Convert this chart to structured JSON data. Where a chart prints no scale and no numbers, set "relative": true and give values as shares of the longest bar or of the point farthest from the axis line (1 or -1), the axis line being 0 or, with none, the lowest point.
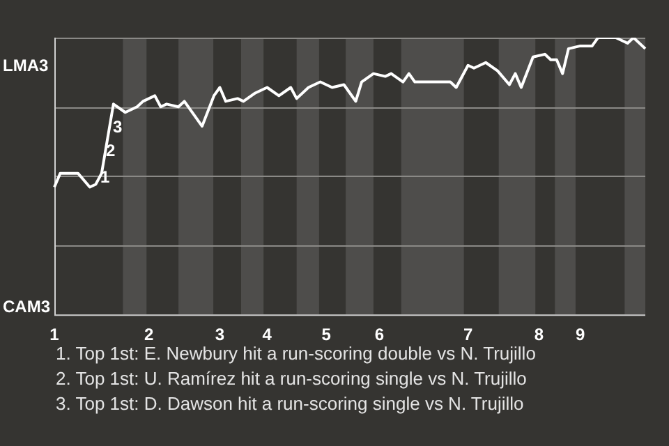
{
  "chart_data": {
    "type": "line",
    "relative": true,
    "categories": [
      "1",
      null,
      null,
      null,
      null,
      null,
      null,
      null,
      null,
      null,
      null,
      null,
      null,
      null,
      null,
      null,
      "2",
      null,
      null,
      null,
      null,
      null,
      null,
      null,
      null,
      null,
      null,
      null,
      "3",
      null,
      null,
      null,
      null,
      null,
      null,
      null,
      "4",
      null,
      null,
      null,
      null,
      null,
      null,
      null,
      null,
      null,
      "5",
      null,
      null,
      null,
      null,
      null,
      null,
      null,
      null,
      "6",
      null,
      null,
      null,
      null,
      null,
      null,
      null,
      null,
      null,
      null,
      null,
      null,
      null,
      null,
      "7",
      null,
      null,
      null,
      null,
      null,
      null,
      null,
      null,
      null,
      null,
      null,
      "8",
      null,
      null,
      null,
      null,
      null,
      null,
      "9",
      null,
      null,
      null,
      null,
      null,
      null,
      null,
      null,
      null,
      null,
      null
    ],
    "series": [
      {
        "color": "#ffffff",
        "values": [
          0.46,
          0.51,
          null,
          null,
          0.51,
          null,
          0.46,
          0.47,
          0.51,
          null,
          0.76,
          null,
          0.73,
          null,
          0.75,
          0.77,
          null,
          0.79,
          0.75,
          0.76,
          null,
          0.75,
          0.77,
          null,
          null,
          0.68,
          null,
          0.79,
          0.82,
          0.77,
          null,
          0.78,
          0.77,
          null,
          0.8,
          null,
          0.82,
          null,
          0.79,
          null,
          0.82,
          0.78,
          null,
          0.82,
          null,
          0.84,
          null,
          0.82,
          null,
          0.83,
          null,
          0.77,
          0.84,
          null,
          0.87,
          null,
          0.86,
          0.87,
          null,
          0.84,
          0.87,
          0.84,
          null,
          null,
          null,
          null,
          null,
          0.84,
          0.82,
          null,
          0.9,
          0.89,
          null,
          0.91,
          null,
          0.88,
          null,
          0.83,
          0.87,
          0.82,
          null,
          0.93,
          null,
          0.94,
          0.92,
          0.92,
          0.87,
          0.96,
          null,
          0.97,
          null,
          0.97,
          1,
          null,
          null,
          1,
          null,
          0.98,
          1,
          null,
          0.96
        ]
      }
    ],
    "grid": "y",
    "legend": false,
    "marker": "none",
    "line_style": "solid",
    "annotations": [
      "LMA3",
      "CAM3",
      "1",
      "2",
      "3",
      "1. Top 1st: E. Newbury hit a run-scoring double vs N. Trujillo",
      "2. Top 1st: U. Ramírez hit a run-scoring single vs N. Trujillo",
      "3. Top 1st: D. Dawson hit a run-scoring single vs N. Trujillo"
    ]
  }
}
